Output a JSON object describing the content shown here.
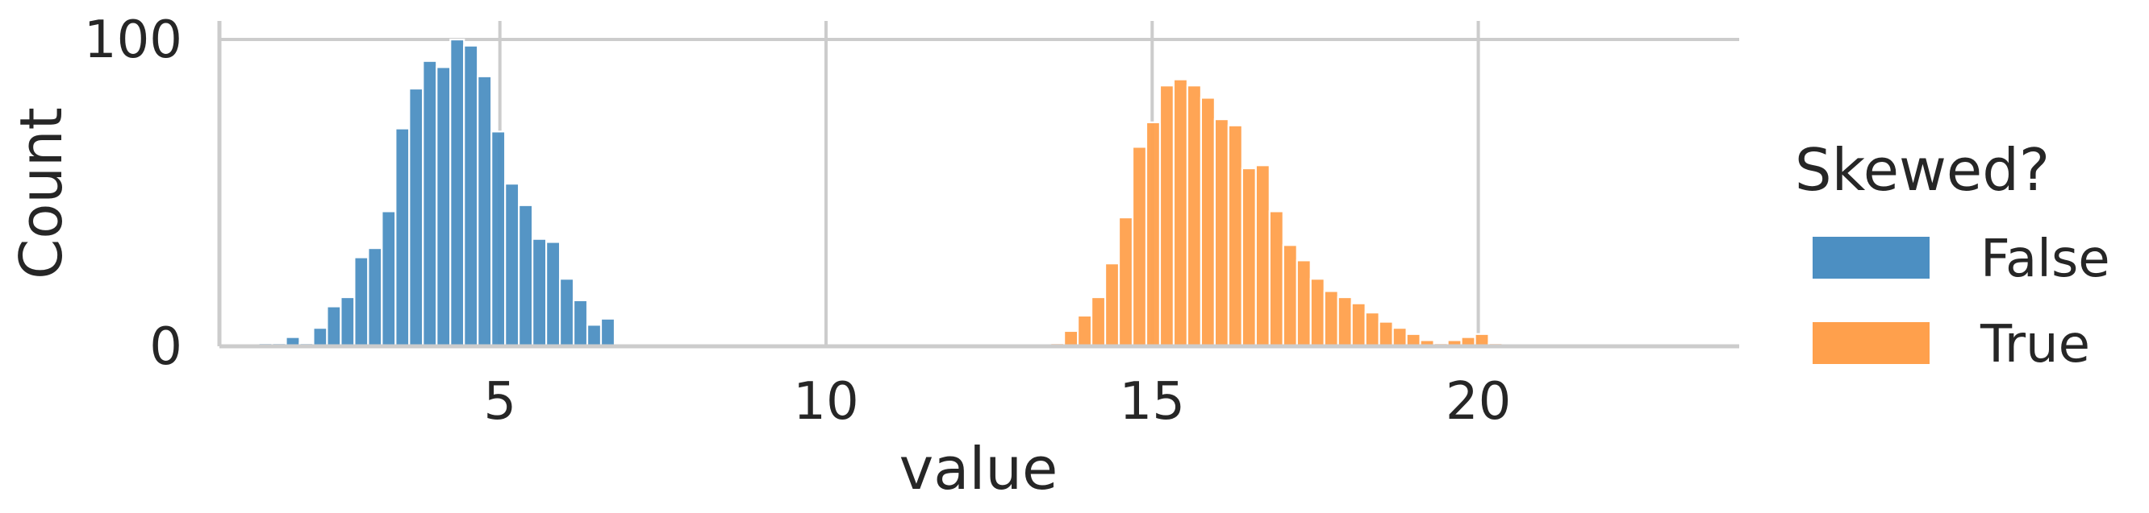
{
  "chart_data": {
    "type": "histogram",
    "xlabel": "value",
    "ylabel": "Count",
    "xlim": [
      0.7,
      24.0
    ],
    "ylim": [
      0,
      105
    ],
    "xticks": [
      5,
      10,
      15,
      20
    ],
    "yticks": [
      0,
      100
    ],
    "x_tick_labels": [
      "5",
      "10",
      "15",
      "20"
    ],
    "y_tick_labels": [
      "0",
      "100"
    ],
    "grid": true,
    "legend": {
      "title": "Skewed?",
      "placement": "right"
    },
    "bin_width": 0.21,
    "series": [
      {
        "name": "False",
        "color": "#4c8fc2",
        "bin_start": 1.3,
        "counts": [
          1,
          1,
          3,
          1,
          6,
          13,
          16,
          29,
          32,
          44,
          71,
          84,
          93,
          91,
          100,
          98,
          88,
          70,
          53,
          46,
          35,
          34,
          22,
          15,
          7,
          9
        ]
      },
      {
        "name": "True",
        "color": "#ffa04c",
        "bin_start": 13.44,
        "counts": [
          1,
          5,
          10,
          16,
          27,
          42,
          65,
          73,
          85,
          87,
          85,
          81,
          74,
          72,
          58,
          59,
          44,
          33,
          28,
          22,
          18,
          16,
          14,
          11,
          8,
          6,
          4,
          2,
          1,
          2,
          3,
          4,
          1
        ]
      }
    ]
  },
  "legend_items": [
    {
      "label": "False",
      "color": "#4c8fc2"
    },
    {
      "label": "True",
      "color": "#ffa04c"
    }
  ]
}
